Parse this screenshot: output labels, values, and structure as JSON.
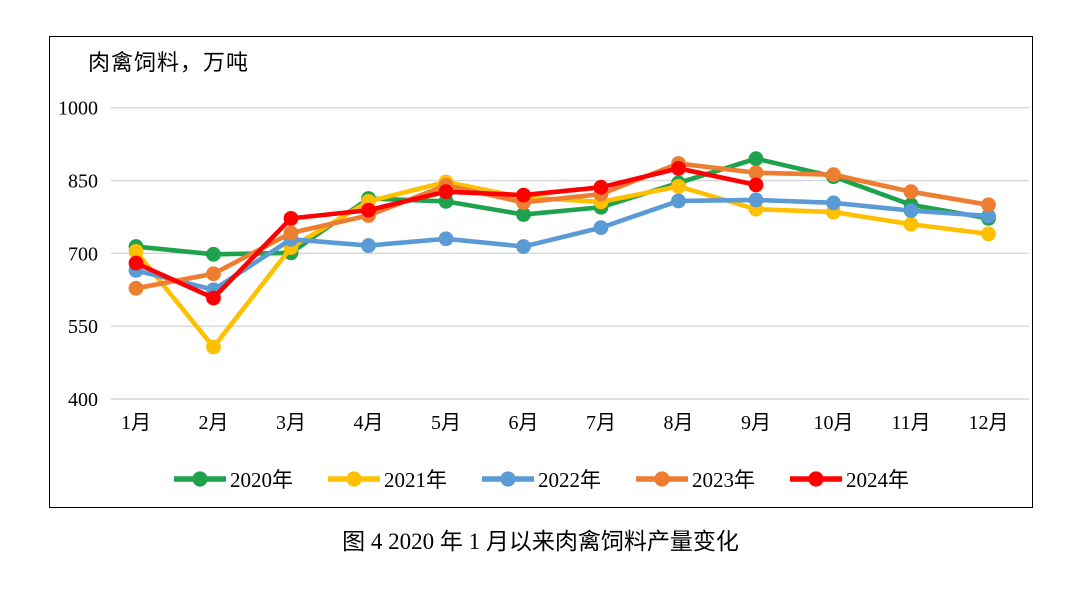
{
  "figure": {
    "unit_label": "肉禽饲料，万吨",
    "caption": "图 4 2020 年 1 月以来肉禽饲料产量变化"
  },
  "chart_data": {
    "type": "line",
    "title": "肉禽饲料，万吨",
    "xlabel": "",
    "ylabel": "万吨",
    "ylim": [
      400,
      1000
    ],
    "yticks": [
      400,
      550,
      700,
      850,
      1000
    ],
    "grid": "horizontal",
    "gridline_color": "#d6d6d6",
    "legend_position": "bottom",
    "categories": [
      "1月",
      "2月",
      "3月",
      "4月",
      "5月",
      "6月",
      "7月",
      "8月",
      "9月",
      "10月",
      "11月",
      "12月"
    ],
    "series": [
      {
        "name": "2020年",
        "color": "#1FA24C",
        "values": [
          714,
          698,
          701,
          813,
          807,
          780,
          795,
          845,
          895,
          858,
          800,
          772
        ]
      },
      {
        "name": "2021年",
        "color": "#FFC000",
        "values": [
          704,
          507,
          712,
          807,
          847,
          815,
          806,
          838,
          791,
          785,
          760,
          740
        ]
      },
      {
        "name": "2022年",
        "color": "#5B9BD5",
        "values": [
          665,
          625,
          729,
          716,
          730,
          714,
          753,
          808,
          810,
          804,
          788,
          777
        ]
      },
      {
        "name": "2023年",
        "color": "#ED7D31",
        "values": [
          628,
          658,
          742,
          778,
          840,
          805,
          822,
          885,
          866,
          862,
          827,
          800
        ]
      },
      {
        "name": "2024年",
        "color": "#FF0000",
        "values": [
          680,
          608,
          772,
          789,
          827,
          820,
          836,
          875,
          841,
          null,
          null,
          null
        ]
      }
    ]
  }
}
